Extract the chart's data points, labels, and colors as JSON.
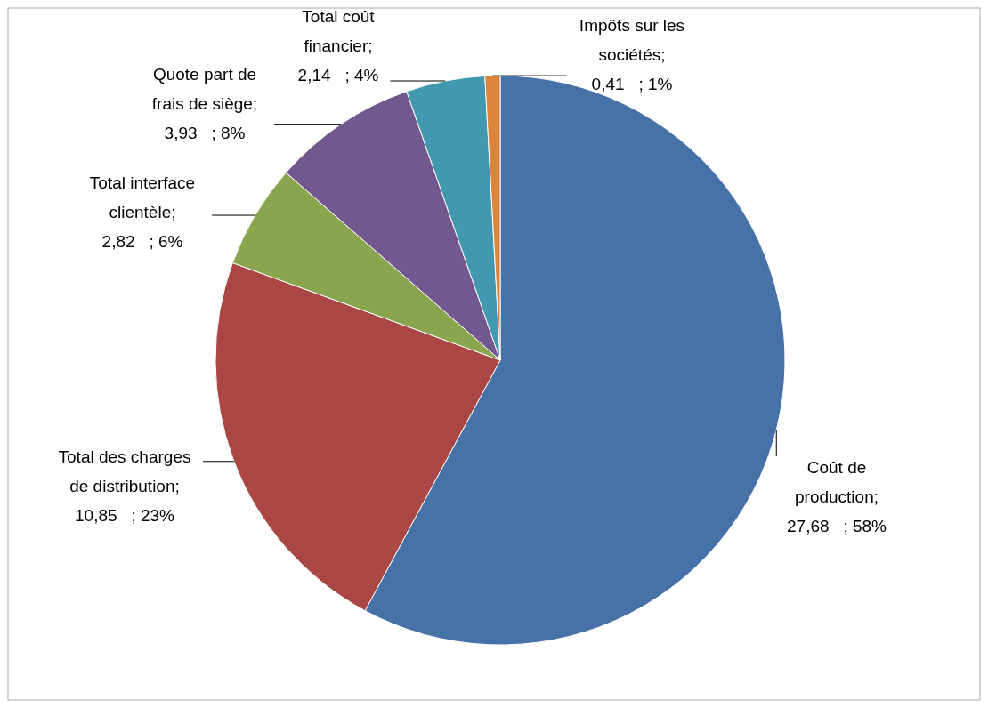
{
  "chart_data": {
    "type": "pie",
    "categories": [
      "Coût de production",
      "Total des charges de distribution",
      "Total interface clientèle",
      "Quote part de frais de siège",
      "Total coût financier",
      "Impôts sur les sociétés"
    ],
    "values": [
      27.68,
      10.85,
      2.82,
      3.93,
      2.14,
      0.41
    ],
    "value_labels": [
      "; 27,68   ; 58%",
      "; 10,85   ; 23%",
      "; 2,82   ; 6%",
      "; 3,93   ; 8%",
      "; 2,14   ; 4%",
      "; 0,41   ; 1%"
    ],
    "colors": [
      "#4672a8",
      "#aa4644",
      "#89a54e",
      "#71588f",
      "#4198af",
      "#db843d"
    ],
    "legend": false
  }
}
